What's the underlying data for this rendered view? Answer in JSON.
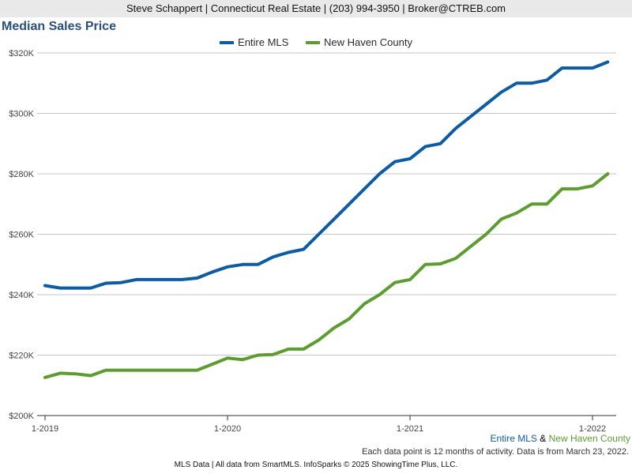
{
  "header": {
    "contact": "Steve Schappert | Connecticut Real Estate | (203) 994-3950 | Broker@CTREB.com"
  },
  "chart_data": {
    "type": "line",
    "title": "Median Sales Price",
    "x_ticks": [
      "1-2019",
      "1-2020",
      "1-2021",
      "1-2022"
    ],
    "y_ticks": [
      "$200K",
      "$220K",
      "$240K",
      "$260K",
      "$280K",
      "$300K",
      "$320K"
    ],
    "ylim": [
      200000,
      325000
    ],
    "grid": true,
    "legend_position": "top-center",
    "series": [
      {
        "name": "Entire MLS",
        "color": "#0a5ca8",
        "values": [
          243000,
          242200,
          242200,
          242200,
          243800,
          244000,
          245000,
          245000,
          245000,
          245000,
          245500,
          247500,
          249200,
          250000,
          250000,
          252500,
          254000,
          255000,
          260000,
          265000,
          270000,
          275000,
          280000,
          284000,
          285000,
          289000,
          290000,
          295000,
          299000,
          303000,
          307000,
          310000,
          310000,
          311000,
          315000,
          315000,
          315000,
          317000
        ]
      },
      {
        "name": "New Haven County",
        "color": "#5c9e2e",
        "values": [
          212600,
          214000,
          213800,
          213200,
          215000,
          215000,
          215000,
          215000,
          215000,
          215000,
          215000,
          217000,
          219000,
          218500,
          220000,
          220200,
          222000,
          222000,
          225000,
          229000,
          232000,
          237000,
          240000,
          244000,
          245000,
          250000,
          250200,
          252000,
          256000,
          260000,
          265000,
          267000,
          270000,
          270000,
          275000,
          275000,
          276000,
          280000
        ]
      }
    ]
  },
  "combined_legend": {
    "first": "Entire MLS",
    "amp": "&",
    "second": "New Haven County"
  },
  "note": "Each data point is 12 months of activity. Data is from March 23, 2022.",
  "footer": "MLS Data | All data from SmartMLS. InfoSparks © 2025 ShowingTime Plus, LLC."
}
